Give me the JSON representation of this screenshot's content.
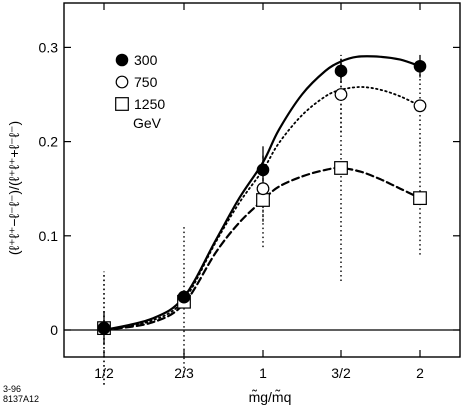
{
  "chart_data": {
    "type": "line",
    "title": "",
    "xlabel": "m̃g/m̃q",
    "ylabel": "(ℓ⁺ℓ⁺−ℓ⁻ℓ⁻)/(ℓ⁺ℓ⁺+ℓ⁻ℓ⁻)",
    "x_categories": [
      "1/2",
      "2/3",
      "1",
      "3/2",
      "2"
    ],
    "x_values": [
      0.5,
      0.6667,
      1.0,
      1.5,
      2.0
    ],
    "ylim": [
      -0.03,
      0.345
    ],
    "y_ticks": [
      0,
      0.1,
      0.2,
      0.3
    ],
    "y_tick_labels": [
      "0",
      "0.1",
      "0.2",
      "0.3"
    ],
    "grid": false,
    "legend_position": "top-left",
    "legend_unit": "GeV",
    "series": [
      {
        "name": "300",
        "marker": "filled-circle",
        "line_style": "solid",
        "points": [
          {
            "x": 0.5,
            "y": 0.002,
            "err": 0.018
          },
          {
            "x": 0.6667,
            "y": 0.035,
            "err": 0.0
          },
          {
            "x": 1.0,
            "y": 0.17,
            "err": 0.025
          },
          {
            "x": 1.5,
            "y": 0.275,
            "err": 0.012
          },
          {
            "x": 2.0,
            "y": 0.28,
            "err": 0.012
          }
        ],
        "curve": [
          {
            "x": 0.5,
            "y": 0.0
          },
          {
            "x": 0.6,
            "y": 0.012
          },
          {
            "x": 0.6667,
            "y": 0.035
          },
          {
            "x": 0.8,
            "y": 0.095
          },
          {
            "x": 0.9,
            "y": 0.14
          },
          {
            "x": 1.0,
            "y": 0.178
          },
          {
            "x": 1.1,
            "y": 0.212
          },
          {
            "x": 1.25,
            "y": 0.25
          },
          {
            "x": 1.4,
            "y": 0.275
          },
          {
            "x": 1.5,
            "y": 0.285
          },
          {
            "x": 1.6,
            "y": 0.29
          },
          {
            "x": 1.75,
            "y": 0.29
          },
          {
            "x": 1.875,
            "y": 0.287
          },
          {
            "x": 2.0,
            "y": 0.28
          }
        ]
      },
      {
        "name": "750",
        "marker": "open-circle",
        "line_style": "dotted",
        "points": [
          {
            "x": 0.5,
            "y": 0.002,
            "err": 0.06
          },
          {
            "x": 0.6667,
            "y": 0.035,
            "err": 0.0
          },
          {
            "x": 1.0,
            "y": 0.15,
            "err": 0.035
          },
          {
            "x": 1.5,
            "y": 0.25,
            "err": 0.04
          },
          {
            "x": 2.0,
            "y": 0.238,
            "err": 0.04
          }
        ],
        "curve": [
          {
            "x": 0.5,
            "y": 0.0
          },
          {
            "x": 0.6,
            "y": 0.01
          },
          {
            "x": 0.6667,
            "y": 0.032
          },
          {
            "x": 0.8,
            "y": 0.093
          },
          {
            "x": 0.9,
            "y": 0.135
          },
          {
            "x": 1.0,
            "y": 0.17
          },
          {
            "x": 1.1,
            "y": 0.198
          },
          {
            "x": 1.25,
            "y": 0.228
          },
          {
            "x": 1.4,
            "y": 0.248
          },
          {
            "x": 1.5,
            "y": 0.255
          },
          {
            "x": 1.625,
            "y": 0.258
          },
          {
            "x": 1.75,
            "y": 0.255
          },
          {
            "x": 1.875,
            "y": 0.248
          },
          {
            "x": 2.0,
            "y": 0.238
          }
        ]
      },
      {
        "name": "1250",
        "marker": "open-square",
        "line_style": "dashed",
        "points": [
          {
            "x": 0.5,
            "y": 0.002,
            "err": 0.06
          },
          {
            "x": 0.6667,
            "y": 0.03,
            "err": 0.08
          },
          {
            "x": 1.0,
            "y": 0.138,
            "err": 0.05
          },
          {
            "x": 1.5,
            "y": 0.172,
            "err": 0.12
          },
          {
            "x": 2.0,
            "y": 0.14,
            "err": 0.06
          }
        ],
        "curve": [
          {
            "x": 0.5,
            "y": 0.0
          },
          {
            "x": 0.6,
            "y": 0.008
          },
          {
            "x": 0.6667,
            "y": 0.028
          },
          {
            "x": 0.8,
            "y": 0.082
          },
          {
            "x": 0.9,
            "y": 0.114
          },
          {
            "x": 1.0,
            "y": 0.138
          },
          {
            "x": 1.1,
            "y": 0.152
          },
          {
            "x": 1.25,
            "y": 0.163
          },
          {
            "x": 1.4,
            "y": 0.17
          },
          {
            "x": 1.5,
            "y": 0.172
          },
          {
            "x": 1.625,
            "y": 0.168
          },
          {
            "x": 1.75,
            "y": 0.16
          },
          {
            "x": 1.875,
            "y": 0.15
          },
          {
            "x": 2.0,
            "y": 0.14
          }
        ]
      }
    ]
  },
  "figure_id": {
    "line1": "3-96",
    "line2": "8137A12"
  }
}
